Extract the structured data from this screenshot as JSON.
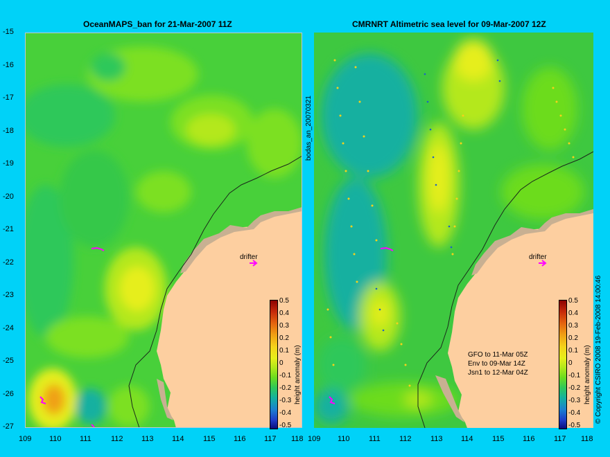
{
  "left_panel": {
    "title": "OceanMAPS_ban for 21-Mar-2007 11Z",
    "drifter_label": "drifter",
    "side_label": "bodas_an_20070321"
  },
  "right_panel": {
    "title": "CMRNRT Altimetric sea level  for 09-Mar-2007 12Z",
    "drifter_label": "drifter",
    "legend_lines": [
      "GFO to 11-Mar 05Z",
      "Env to 09-Mar 14Z",
      "Jsn1 to 12-Mar 04Z"
    ]
  },
  "y_ticks": [
    "-15",
    "-16",
    "-17",
    "-18",
    "-19",
    "-20",
    "-21",
    "-22",
    "-23",
    "-24",
    "-25",
    "-26",
    "-27"
  ],
  "x_ticks": [
    "109",
    "110",
    "111",
    "112",
    "113",
    "114",
    "115",
    "116",
    "117",
    "118"
  ],
  "colorbar": {
    "label": "height anomaly (m)",
    "ticks": [
      "0.5",
      "0.4",
      "0.3",
      "0.2",
      "0.1",
      "0",
      "-0.1",
      "-0.2",
      "-0.3",
      "-0.4",
      "-0.5"
    ],
    "colors": [
      "#8b0000",
      "#c62a0a",
      "#e4640f",
      "#f0a014",
      "#f5d21a",
      "#e6ee1a",
      "#b4e81a",
      "#6cdc1e",
      "#2ec85a",
      "#14b0a0",
      "#1c7fd0",
      "#1e3cc8",
      "#0a0a78"
    ]
  },
  "copyright": "© Copyright CSIRO 2008   19-Feb-2008 14:00:46",
  "map": {
    "ocean_base": "#3ecf3a",
    "land": "#fdcfa0",
    "coast_shelf": "#c8b092",
    "drifter_color": "#ff00ff",
    "lon_range": [
      109,
      118
    ],
    "lat_range": [
      -27,
      -15
    ]
  }
}
